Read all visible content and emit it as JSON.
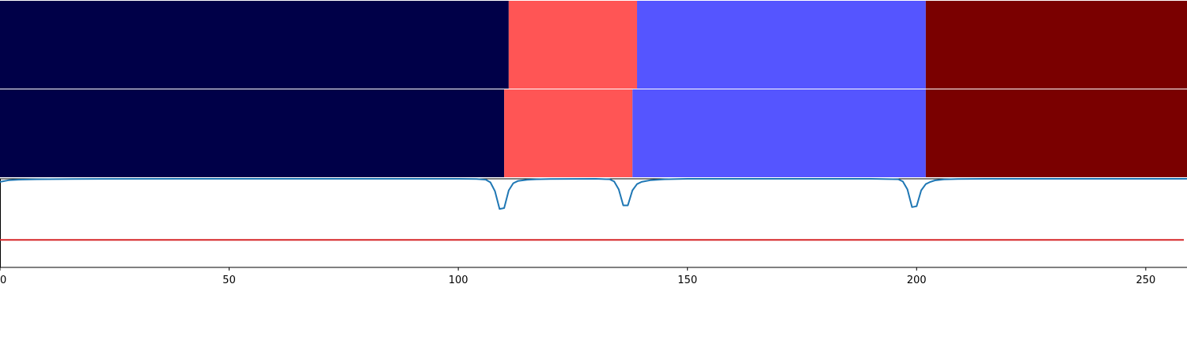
{
  "chart_data": {
    "type": "segmentation-timeline",
    "xlim": [
      0,
      259
    ],
    "xticks": [
      {
        "value": 0,
        "label": "0"
      },
      {
        "value": 50,
        "label": "50"
      },
      {
        "value": 100,
        "label": "100"
      },
      {
        "value": 150,
        "label": "150"
      },
      {
        "value": 200,
        "label": "200"
      },
      {
        "value": 250,
        "label": "250"
      }
    ],
    "segment_rows": [
      {
        "segments": [
          {
            "start": 0,
            "end": 111,
            "color": "#000048"
          },
          {
            "start": 111,
            "end": 139,
            "color": "#ff5555"
          },
          {
            "start": 139,
            "end": 202,
            "color": "#5555ff"
          },
          {
            "start": 202,
            "end": 259,
            "color": "#7a0000"
          }
        ]
      },
      {
        "segments": [
          {
            "start": 0,
            "end": 110,
            "color": "#000048"
          },
          {
            "start": 110,
            "end": 138,
            "color": "#ff5555"
          },
          {
            "start": 138,
            "end": 202,
            "color": "#5555ff"
          },
          {
            "start": 202,
            "end": 259,
            "color": "#7a0000"
          }
        ]
      }
    ],
    "signal": {
      "color": "#1f77b4",
      "ylim": [
        0,
        1
      ],
      "x": [
        0,
        1,
        2,
        4,
        8,
        16,
        40,
        100,
        104,
        106,
        107,
        108,
        109,
        110,
        111,
        112,
        113,
        115,
        117,
        120,
        130,
        133,
        134,
        135,
        136,
        137,
        138,
        139,
        140,
        142,
        145,
        150,
        190,
        196,
        197,
        198,
        199,
        200,
        201,
        202,
        203,
        204,
        206,
        209,
        215,
        230,
        259
      ],
      "y": [
        0.965,
        0.975,
        0.985,
        0.99,
        0.995,
        0.998,
        1.0,
        1.0,
        0.998,
        0.99,
        0.96,
        0.86,
        0.66,
        0.67,
        0.87,
        0.95,
        0.975,
        0.988,
        0.995,
        0.998,
        1.0,
        0.995,
        0.97,
        0.88,
        0.7,
        0.7,
        0.87,
        0.94,
        0.965,
        0.985,
        0.995,
        1.0,
        1.0,
        0.995,
        0.97,
        0.88,
        0.68,
        0.69,
        0.87,
        0.94,
        0.965,
        0.982,
        0.993,
        0.998,
        1.0,
        1.0,
        1.0
      ]
    },
    "threshold": {
      "value": 0.31,
      "color": "#d62728"
    }
  }
}
